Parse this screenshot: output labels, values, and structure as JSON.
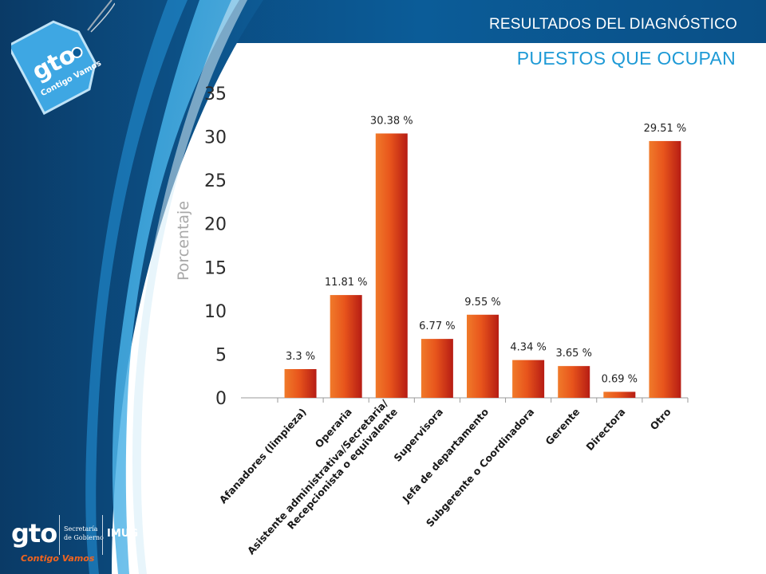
{
  "header": {
    "title": "RESULTADOS DEL DIAGNÓSTICO",
    "subtitle": "PUESTOS QUE OCUPAN"
  },
  "branding": {
    "tag_logo": "gto",
    "tag_slogan": "Contigo Vamos",
    "footer_logo": "gto",
    "footer_slogan": "Contigo Vamos",
    "footer_secretaria_line1": "Secretaría",
    "footer_secretaria_line2": "de Gobierno",
    "footer_imug": "IMUG"
  },
  "colors": {
    "header_blue": "#0a4f86",
    "accent_blue": "#1e9ad6",
    "bar_orange": "#e8551c",
    "bar_red": "#b61c14"
  },
  "chart_data": {
    "type": "bar",
    "ylabel": "Porcentaje",
    "ylim": [
      0,
      35
    ],
    "yticks": [
      0,
      5,
      10,
      15,
      20,
      25,
      30,
      35
    ],
    "grid": false,
    "categories": [
      [
        "Afanadores (limpieza)"
      ],
      [
        "Operaria"
      ],
      [
        "Asistente administrativa/Secretaria/",
        "Recepcionista o equivalente"
      ],
      [
        "Supervisora"
      ],
      [
        "Jefa de departamento"
      ],
      [
        "Subgerente o Coordinadora"
      ],
      [
        "Gerente"
      ],
      [
        "Directora"
      ],
      [
        "Otro"
      ]
    ],
    "values": [
      3.3,
      11.81,
      30.38,
      6.77,
      9.55,
      4.34,
      3.65,
      0.69,
      29.51
    ],
    "value_labels": [
      "3.3 %",
      "11.81 %",
      "30.38 %",
      "6.77 %",
      "9.55 %",
      "4.34 %",
      "3.65 %",
      "0.69 %",
      "29.51 %"
    ]
  }
}
